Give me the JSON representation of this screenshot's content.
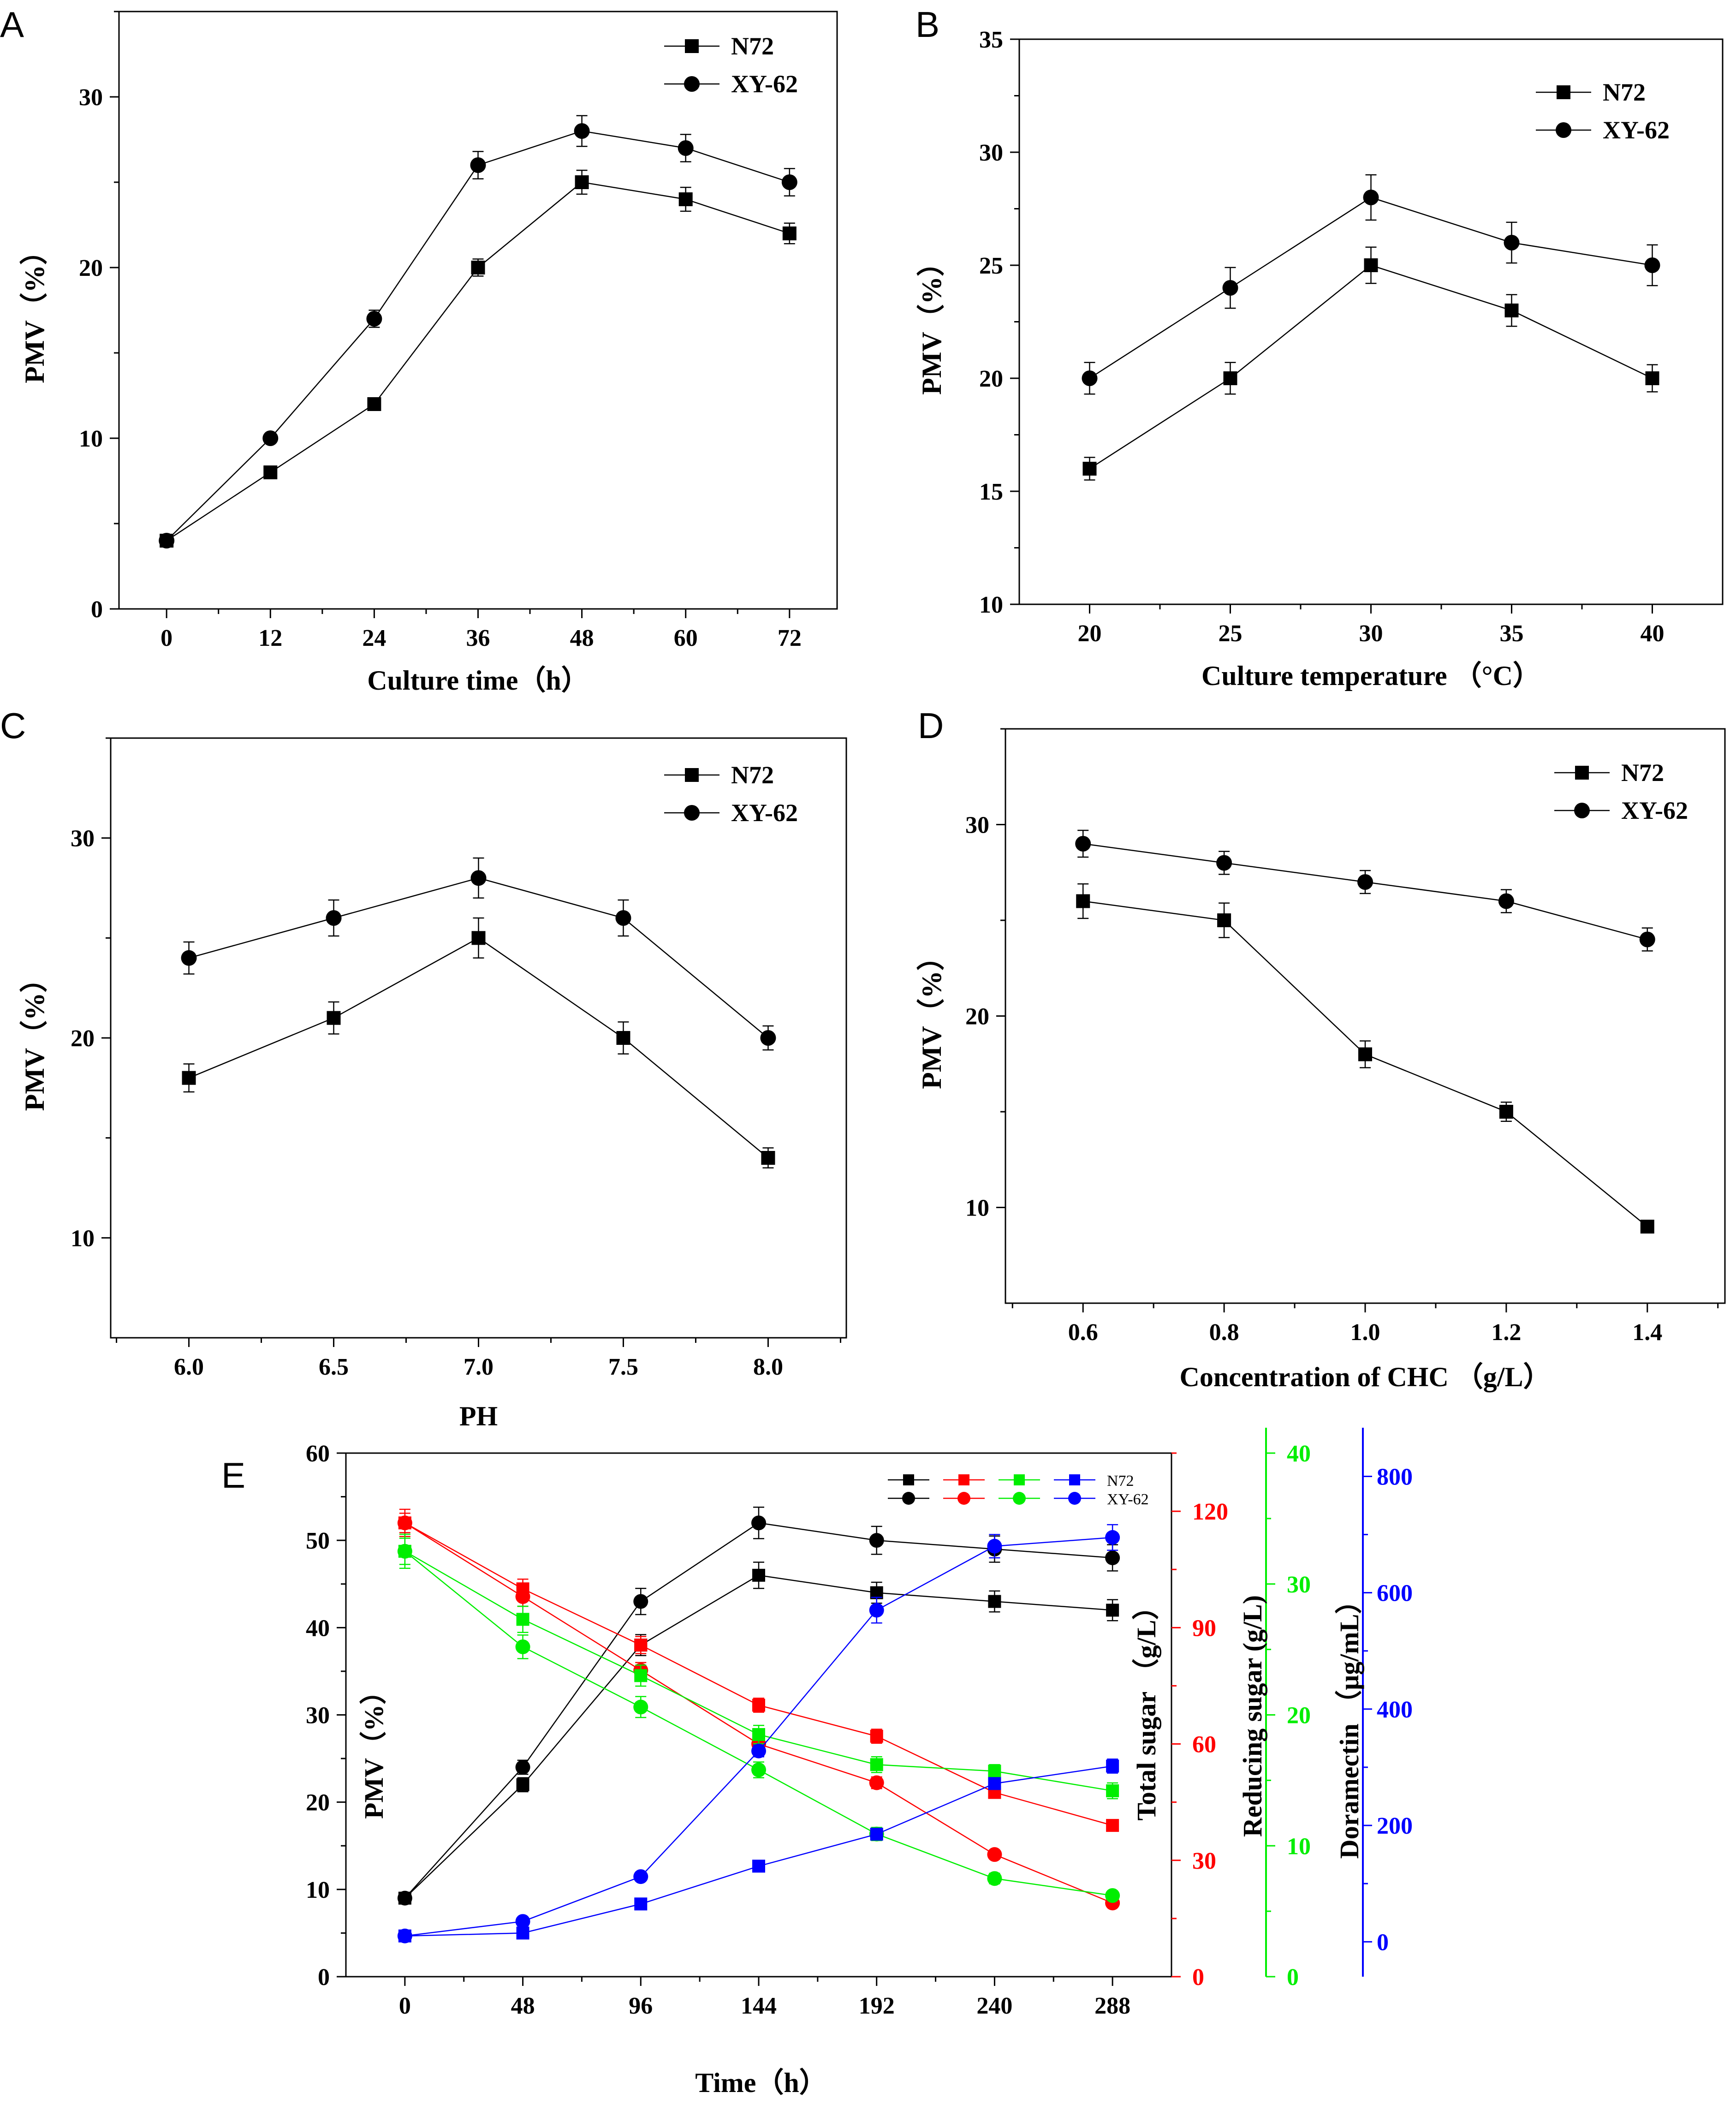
{
  "figure": {
    "type": "multi-panel line charts"
  },
  "chart_data": [
    {
      "panel": "A",
      "type": "line",
      "xlabel": "Culture time（h）",
      "ylabel": "PMV（%）",
      "x": [
        0,
        12,
        24,
        36,
        48,
        60,
        72
      ],
      "xticks": [
        "0",
        "12",
        "24",
        "36",
        "48",
        "60",
        "72"
      ],
      "xlim": [
        -5.5,
        77.5
      ],
      "yticks": [
        "0",
        "10",
        "20",
        "30"
      ],
      "ylim": [
        0,
        35
      ],
      "legend": "top-right",
      "series": [
        {
          "name": "N72",
          "marker": "square",
          "values": [
            4,
            8,
            12,
            20,
            25,
            24,
            22
          ],
          "errors": [
            0,
            0,
            0,
            0.5,
            0.7,
            0.7,
            0.6
          ]
        },
        {
          "name": "XY-62",
          "marker": "circle",
          "values": [
            4,
            10,
            17,
            26,
            28,
            27,
            25
          ],
          "errors": [
            0,
            0,
            0.5,
            0.8,
            0.9,
            0.8,
            0.8
          ]
        }
      ]
    },
    {
      "panel": "B",
      "type": "line",
      "xlabel": "Culture temperature （°C）",
      "ylabel": "PMV（%）",
      "x": [
        20,
        25,
        30,
        35,
        40
      ],
      "xticks": [
        "20",
        "25",
        "30",
        "35",
        "40"
      ],
      "xlim": [
        17.5,
        42.5
      ],
      "yticks": [
        "10",
        "15",
        "20",
        "25",
        "30",
        "35"
      ],
      "ylim": [
        10,
        35
      ],
      "legend": "top-right",
      "series": [
        {
          "name": "N72",
          "marker": "square",
          "values": [
            16,
            20,
            25,
            23,
            20
          ],
          "errors": [
            0.5,
            0.7,
            0.8,
            0.7,
            0.6
          ]
        },
        {
          "name": "XY-62",
          "marker": "circle",
          "values": [
            20,
            24,
            28,
            26,
            25
          ],
          "errors": [
            0.7,
            0.9,
            1.0,
            0.9,
            0.9
          ]
        }
      ]
    },
    {
      "panel": "C",
      "type": "line",
      "xlabel": "PH",
      "ylabel": "PMV（%）",
      "x": [
        6.0,
        6.5,
        7.0,
        7.5,
        8.0
      ],
      "xticks": [
        "6.0",
        "6.5",
        "7.0",
        "7.5",
        "8.0"
      ],
      "xlim": [
        5.73,
        8.27
      ],
      "yticks": [
        "10",
        "20",
        "30"
      ],
      "ylim": [
        5,
        35
      ],
      "legend": "top-right",
      "series": [
        {
          "name": "N72",
          "marker": "square",
          "values": [
            18,
            21,
            25,
            20,
            14
          ],
          "errors": [
            0.7,
            0.8,
            1.0,
            0.8,
            0.5
          ]
        },
        {
          "name": "XY-62",
          "marker": "circle",
          "values": [
            24,
            26,
            28,
            26,
            20
          ],
          "errors": [
            0.8,
            0.9,
            1.0,
            0.9,
            0.6
          ]
        }
      ]
    },
    {
      "panel": "D",
      "type": "line",
      "xlabel": "Concentration of  CHC （g/L）",
      "ylabel": "PMV（%）",
      "x": [
        0.6,
        0.8,
        1.0,
        1.2,
        1.4
      ],
      "xticks": [
        "0.6",
        "0.8",
        "1.0",
        "1.2",
        "1.4"
      ],
      "xlim": [
        0.49,
        1.51
      ],
      "yticks": [
        "10",
        "20",
        "30"
      ],
      "ylim": [
        5,
        35
      ],
      "legend": "top-right",
      "series": [
        {
          "name": "N72",
          "marker": "square",
          "values": [
            26,
            25,
            18,
            15,
            9
          ],
          "errors": [
            0.9,
            0.9,
            0.7,
            0.5,
            0
          ]
        },
        {
          "name": "XY-62",
          "marker": "circle",
          "values": [
            29,
            28,
            27,
            26,
            24
          ],
          "errors": [
            0.7,
            0.6,
            0.6,
            0.6,
            0.6
          ]
        }
      ]
    },
    {
      "panel": "E",
      "type": "line",
      "xlabel": "Time（h）",
      "x": [
        0,
        48,
        96,
        144,
        192,
        240,
        288
      ],
      "xticks": [
        "0",
        "48",
        "96",
        "144",
        "192",
        "240",
        "288"
      ],
      "xlim": [
        -24,
        312
      ],
      "legend": "top-right",
      "legend_labels": {
        "N72": "N72",
        "XY62": "XY-62"
      },
      "axes": [
        {
          "id": "pmv",
          "label": "PMV（%）",
          "color": "#000000",
          "ticks": [
            "0",
            "10",
            "20",
            "30",
            "40",
            "50",
            "60"
          ],
          "ylim": [
            0,
            60
          ]
        },
        {
          "id": "total_sugar",
          "label": "Total sugar （g/L）",
          "color": "#ff0000",
          "ticks": [
            "0",
            "30",
            "60",
            "90",
            "120"
          ],
          "ylim": [
            0,
            135
          ]
        },
        {
          "id": "reducing_sugar",
          "label": "Reducing sugar (g/L)",
          "color": "#00ee00",
          "ticks": [
            "0",
            "10",
            "20",
            "30",
            "40"
          ],
          "ylim": [
            0,
            40
          ]
        },
        {
          "id": "doramectin",
          "label": "Doramectin （μg/mL）",
          "color": "#0000ff",
          "ticks": [
            "0",
            "200",
            "400",
            "600",
            "800"
          ],
          "ylim": [
            -60,
            840
          ]
        }
      ],
      "series": [
        {
          "name": "N72",
          "quantity": "PMV",
          "axis": "pmv",
          "marker": "square",
          "color": "#000000",
          "values": [
            9,
            22,
            38,
            46,
            44,
            43,
            42
          ],
          "errors": [
            0,
            0.8,
            1.2,
            1.5,
            1.2,
            1.2,
            1.2
          ]
        },
        {
          "name": "XY-62",
          "quantity": "PMV",
          "axis": "pmv",
          "marker": "circle",
          "color": "#000000",
          "values": [
            9,
            24,
            43,
            52,
            50,
            49,
            48
          ],
          "errors": [
            0,
            0.8,
            1.5,
            1.8,
            1.6,
            1.5,
            1.5
          ]
        },
        {
          "name": "N72",
          "quantity": "Total sugar",
          "axis": "total_sugar",
          "marker": "square",
          "color": "#ff0000",
          "values": [
            117,
            100,
            85.5,
            70,
            62,
            47.5,
            39
          ],
          "errors": [
            3.5,
            2.5,
            2.2,
            1.8,
            1.8,
            1.5,
            0
          ]
        },
        {
          "name": "XY-62",
          "quantity": "Total sugar",
          "axis": "total_sugar",
          "marker": "circle",
          "color": "#ff0000",
          "values": [
            117,
            98,
            79,
            60,
            50,
            31.5,
            19
          ],
          "errors": [
            2.5,
            2.5,
            2.0,
            1.8,
            1.5,
            0,
            0
          ]
        },
        {
          "name": "N72",
          "quantity": "Reducing sugar",
          "axis": "reducing_sugar",
          "marker": "square",
          "color": "#00ee00",
          "values": [
            32.5,
            27.3,
            23,
            18.5,
            16.2,
            15.7,
            14.2
          ],
          "errors": [
            1.3,
            1.0,
            0.8,
            0.7,
            0.6,
            0.5,
            0.6
          ]
        },
        {
          "name": "XY-62",
          "quantity": "Reducing sugar",
          "axis": "reducing_sugar",
          "marker": "circle",
          "color": "#00ee00",
          "values": [
            32.5,
            25.2,
            20.6,
            15.8,
            10.9,
            7.5,
            6.2
          ],
          "errors": [
            1.0,
            0.9,
            0.8,
            0.6,
            0.5,
            0.4,
            0
          ]
        },
        {
          "name": "N72",
          "quantity": "Doramectin",
          "axis": "doramectin",
          "marker": "square",
          "color": "#0000ff",
          "values": [
            10,
            15,
            65,
            130,
            185,
            272,
            302
          ],
          "errors": [
            0,
            0,
            0,
            0,
            0,
            10,
            12
          ]
        },
        {
          "name": "XY-62",
          "quantity": "Doramectin",
          "axis": "doramectin",
          "marker": "circle",
          "color": "#0000ff",
          "values": [
            10,
            35,
            112,
            328,
            570,
            680,
            695
          ],
          "errors": [
            0,
            0,
            0,
            10,
            22,
            20,
            22
          ]
        }
      ]
    }
  ]
}
